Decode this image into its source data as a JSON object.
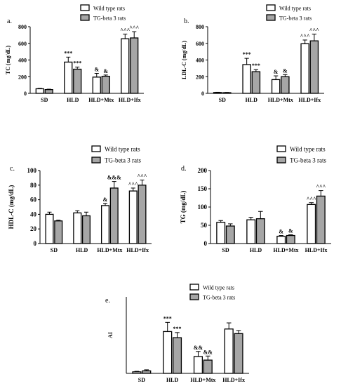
{
  "legend": {
    "wild": "Wild type rats",
    "tg": "TG-beta 3 rats"
  },
  "colors": {
    "wild": "#ffffff",
    "tg": "#a6a6a6",
    "stroke": "#000000"
  },
  "chart_data": [
    {
      "type": "bar",
      "panel_label": "a.",
      "ylabel": "TC (mg/dL)",
      "categories": [
        "SD",
        "HLD",
        "HLD+Mtx",
        "HLD+Ifx"
      ],
      "ylim": [
        0,
        800
      ],
      "yticks": [
        0,
        200,
        400,
        600,
        800
      ],
      "series": [
        {
          "name": "Wild type rats",
          "values": [
            55,
            375,
            195,
            655
          ],
          "errors": [
            5,
            60,
            45,
            55
          ]
        },
        {
          "name": "TG-beta 3 rats",
          "values": [
            45,
            290,
            205,
            665
          ],
          "errors": [
            5,
            25,
            15,
            75
          ]
        }
      ],
      "annotations": [
        [
          "",
          "***",
          "&",
          "^^^"
        ],
        [
          "",
          "***",
          "&",
          "^^^"
        ]
      ]
    },
    {
      "type": "bar",
      "panel_label": "b.",
      "ylabel": "LDL-C (mg/dL)",
      "categories": [
        "SD",
        "HLD",
        "HLD+Mtx",
        "HLD+Ifx"
      ],
      "ylim": [
        0,
        800
      ],
      "yticks": [
        0,
        200,
        400,
        600,
        800
      ],
      "series": [
        {
          "name": "Wild type rats",
          "values": [
            10,
            345,
            165,
            595
          ],
          "errors": [
            3,
            75,
            45,
            45
          ]
        },
        {
          "name": "TG-beta 3 rats",
          "values": [
            8,
            260,
            200,
            630
          ],
          "errors": [
            3,
            25,
            25,
            80
          ]
        }
      ],
      "annotations": [
        [
          "",
          "***",
          "&",
          "^^^"
        ],
        [
          "",
          "***",
          "&",
          "^^^"
        ]
      ]
    },
    {
      "type": "bar",
      "panel_label": "c.",
      "ylabel": "HDL-C (mg/dL)",
      "categories": [
        "SD",
        "HLD",
        "HLD+Mtx",
        "HLD+Ifx"
      ],
      "ylim": [
        0,
        100
      ],
      "yticks": [
        0,
        20,
        40,
        60,
        80,
        100
      ],
      "series": [
        {
          "name": "Wild type rats",
          "values": [
            40,
            42,
            52,
            72
          ],
          "errors": [
            3,
            3,
            3,
            4
          ]
        },
        {
          "name": "TG-beta 3 rats",
          "values": [
            31,
            38,
            76,
            80
          ],
          "errors": [
            1,
            5,
            9,
            7
          ]
        }
      ],
      "annotations": [
        [
          "",
          "",
          "&",
          "^^^"
        ],
        [
          "",
          "",
          "&&&",
          "^^^"
        ]
      ]
    },
    {
      "type": "bar",
      "panel_label": "d.",
      "ylabel": "TG (mg/dL)",
      "categories": [
        "SD",
        "HLD",
        "HLD+Mtx",
        "HLD+Ifx"
      ],
      "ylim": [
        0,
        200
      ],
      "yticks": [
        0,
        50,
        100,
        150,
        200
      ],
      "series": [
        {
          "name": "Wild type rats",
          "values": [
            58,
            65,
            20,
            107
          ],
          "errors": [
            5,
            7,
            2,
            5
          ]
        },
        {
          "name": "TG-beta 3 rats",
          "values": [
            48,
            68,
            22,
            130
          ],
          "errors": [
            6,
            20,
            2,
            15
          ]
        }
      ],
      "annotations": [
        [
          "",
          "",
          "&",
          "^^^"
        ],
        [
          "",
          "",
          "&",
          "^^^"
        ]
      ]
    },
    {
      "type": "bar",
      "panel_label": "e.",
      "ylabel": "AI",
      "categories": [
        "SD",
        "HLD",
        "HLD+Mtx",
        "HLD+Ifx"
      ],
      "ylim": [
        0,
        15
      ],
      "yticks": [],
      "series": [
        {
          "name": "Wild type rats",
          "values": [
            0.3,
            8.2,
            3.3,
            8.7
          ],
          "errors": [
            0.1,
            1.8,
            1.0,
            1.2
          ]
        },
        {
          "name": "TG-beta 3 rats",
          "values": [
            0.5,
            7.0,
            2.6,
            7.8
          ],
          "errors": [
            0.2,
            1.0,
            0.8,
            0.6
          ]
        }
      ],
      "annotations": [
        [
          "",
          "***",
          "&&",
          ""
        ],
        [
          "",
          "***",
          "&&",
          ""
        ]
      ]
    }
  ]
}
